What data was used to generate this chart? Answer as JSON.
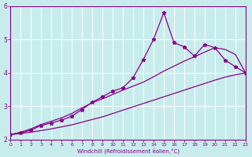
{
  "xlabel": "Windchill (Refroidissement éolien,°C)",
  "xlim": [
    0,
    23
  ],
  "ylim": [
    2,
    6
  ],
  "yticks": [
    2,
    3,
    4,
    5,
    6
  ],
  "xticks": [
    0,
    1,
    2,
    3,
    4,
    5,
    6,
    7,
    8,
    9,
    10,
    11,
    12,
    13,
    14,
    15,
    16,
    17,
    18,
    19,
    20,
    21,
    22,
    23
  ],
  "bg_color": "#c8ecec",
  "grid_color": "#b0d8d8",
  "line_color": "#880088",
  "x": [
    0,
    1,
    2,
    3,
    4,
    5,
    6,
    7,
    8,
    9,
    10,
    11,
    12,
    13,
    14,
    15,
    16,
    17,
    18,
    19,
    20,
    21,
    22,
    23
  ],
  "jagged": [
    2.15,
    2.2,
    2.28,
    2.42,
    2.5,
    2.58,
    2.7,
    2.9,
    3.12,
    3.28,
    3.45,
    3.55,
    3.85,
    4.4,
    5.0,
    5.8,
    4.9,
    4.78,
    4.5,
    4.85,
    4.75,
    4.38,
    4.18,
    4.0
  ],
  "upper": [
    2.15,
    2.22,
    2.32,
    2.45,
    2.55,
    2.65,
    2.78,
    2.95,
    3.1,
    3.22,
    3.35,
    3.48,
    3.6,
    3.72,
    3.88,
    4.05,
    4.2,
    4.35,
    4.48,
    4.62,
    4.75,
    4.7,
    4.55,
    4.0
  ],
  "lower": [
    2.15,
    2.18,
    2.22,
    2.27,
    2.32,
    2.38,
    2.44,
    2.52,
    2.6,
    2.68,
    2.78,
    2.88,
    2.98,
    3.08,
    3.18,
    3.28,
    3.38,
    3.48,
    3.58,
    3.68,
    3.78,
    3.87,
    3.94,
    4.0
  ]
}
